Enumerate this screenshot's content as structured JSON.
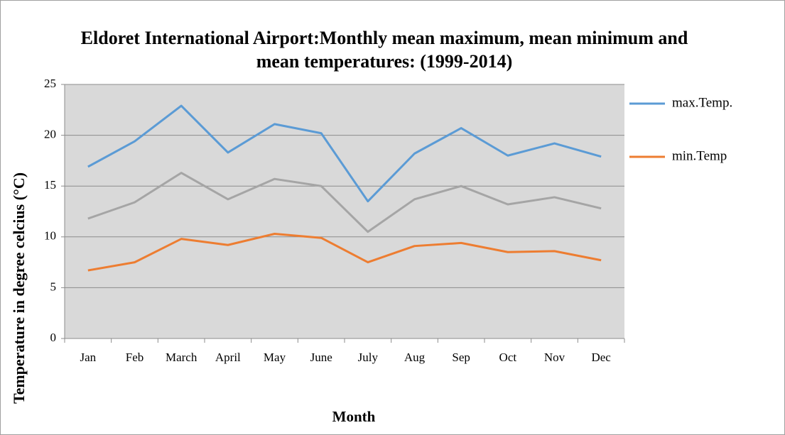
{
  "chart_data": {
    "type": "line",
    "title": "Eldoret International Airport:Monthly mean maximum,  mean minimum and mean temperatures: (1999-2014)",
    "x_label": "Month",
    "y_label": "Temperature in degree celcius (°C)",
    "categories": [
      "Jan",
      "Feb",
      "March",
      "April",
      "May",
      "June",
      "July",
      "Aug",
      "Sep",
      "Oct",
      "Nov",
      "Dec"
    ],
    "series": [
      {
        "name": "max.Temp.",
        "color": "#5b9bd5",
        "values": [
          16.9,
          19.4,
          22.9,
          18.3,
          21.1,
          20.2,
          13.5,
          18.2,
          20.7,
          18.0,
          19.2,
          17.9
        ]
      },
      {
        "name": "min.Temp",
        "color": "#ed7d31",
        "values": [
          6.7,
          7.5,
          9.8,
          9.2,
          10.3,
          9.9,
          7.5,
          9.1,
          9.4,
          8.5,
          8.6,
          7.7
        ]
      },
      {
        "color": "#a5a5a5",
        "values": [
          11.8,
          13.4,
          16.3,
          13.7,
          15.7,
          15.0,
          10.5,
          13.7,
          15.0,
          13.2,
          13.9,
          12.8
        ]
      }
    ],
    "ylim": [
      0,
      25
    ],
    "yticks": [
      0,
      5,
      10,
      15,
      20,
      25
    ],
    "grid": true,
    "plot_background": "#d9d9d9",
    "legend": "right"
  }
}
